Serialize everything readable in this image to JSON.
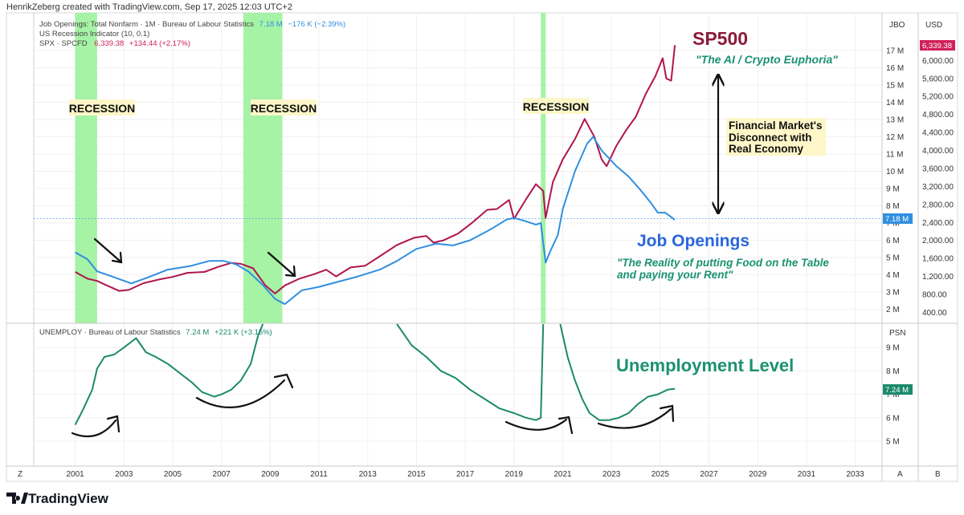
{
  "creator_line": "HenrikZeberg created with TradingView.com, Sep 17, 2025 12:03 UTC+2",
  "logo_text": "TradingView",
  "legend": {
    "jobs_label": "Job Openings: Total Nonfarm · 1M · Bureau of Labour Statistics",
    "jobs_value": "7.18 M",
    "jobs_change": "−176 K (−2.39%)",
    "recession_label": "US Recession Indicator (10, 0.1)",
    "spx_label": "SPX · SPCFD",
    "spx_value": "6,339.38",
    "spx_change": "+134.44 (+2.17%)",
    "unemploy_label": "UNEMPLOY · Bureau of Labour Statistics",
    "unemploy_value": "7.24 M",
    "unemploy_change": "+221 K (+3.15%)"
  },
  "axis_headers": {
    "jbo": "JBO",
    "usd": "USD",
    "psn": "PSN",
    "bottom_left": "Z",
    "bottom_a": "A",
    "bottom_b": "B"
  },
  "price_tags": {
    "spx": "6,339.38",
    "jobs": "7.18 M",
    "unemploy": "7.24 M"
  },
  "colors": {
    "spx": "#b0154e",
    "jobs": "#2f8fe0",
    "unemploy": "#1b8a6b",
    "recession": "#9cf29c",
    "spx_tag": "#d0215a",
    "jobs_tag": "#2f8fe0",
    "unemploy_tag": "#1b8a6b",
    "annotation_green": "#1a9270",
    "annotation_blue": "#2a66dd",
    "annotation_red": "#8b1a3b"
  },
  "annotations": {
    "recession_labels": [
      "RECESSION",
      "RECESSION",
      "RECESSION"
    ],
    "sp500_title": "SP500",
    "sp500_quote": "\"The AI / Crypto Euphoria\"",
    "disconnect": [
      "Financial Market's",
      "Disconnect with",
      "Real Economy"
    ],
    "jobs_title": "Job Openings",
    "jobs_quote": [
      "\"The Reality of putting Food on the Table",
      "and paying your Rent\""
    ],
    "unemploy_title": "Unemployment Level"
  },
  "chart_data": [
    {
      "type": "line",
      "panel": "top",
      "xlim": [
        1999.3,
        2034.1
      ],
      "x_ticks": [
        2001,
        2003,
        2005,
        2007,
        2009,
        2011,
        2013,
        2015,
        2017,
        2019,
        2021,
        2023,
        2025,
        2027,
        2029,
        2031,
        2033
      ],
      "recessions": [
        [
          2001.0,
          2001.9
        ],
        [
          2007.9,
          2009.5
        ],
        [
          2020.1,
          2020.3
        ]
      ],
      "jobs_axis": {
        "unit": "M",
        "ticks": [
          2,
          3,
          4,
          5,
          6,
          7,
          8,
          9,
          10,
          11,
          12,
          13,
          14,
          15,
          16,
          17
        ]
      },
      "usd_axis": {
        "ticks": [
          400,
          800,
          1200,
          1600,
          2000,
          2400,
          2800,
          3200,
          3600,
          4000,
          4400,
          4800,
          5200,
          5600,
          6000
        ]
      },
      "series": [
        {
          "name": "SPX · SPCFD",
          "axis": "USD",
          "x": [
            2001.0,
            2001.5,
            2001.9,
            2002.3,
            2002.8,
            2003.2,
            2003.8,
            2004.5,
            2005.0,
            2005.6,
            2006.3,
            2006.9,
            2007.4,
            2007.8,
            2008.3,
            2008.8,
            2009.2,
            2009.6,
            2010.2,
            2010.8,
            2011.3,
            2011.7,
            2012.3,
            2012.9,
            2013.5,
            2014.2,
            2014.9,
            2015.4,
            2015.7,
            2016.1,
            2016.7,
            2017.3,
            2017.9,
            2018.3,
            2018.8,
            2019.0,
            2019.5,
            2019.9,
            2020.2,
            2020.3,
            2020.6,
            2021.0,
            2021.5,
            2021.9,
            2022.3,
            2022.6,
            2022.8,
            2023.2,
            2023.6,
            2024.0,
            2024.4,
            2024.8,
            2025.1,
            2025.25,
            2025.45,
            2025.6
          ],
          "values": [
            1300,
            1150,
            1100,
            1000,
            880,
            900,
            1050,
            1140,
            1190,
            1280,
            1300,
            1420,
            1500,
            1480,
            1380,
            1000,
            820,
            1000,
            1150,
            1250,
            1350,
            1200,
            1400,
            1440,
            1650,
            1900,
            2060,
            2100,
            1950,
            2000,
            2150,
            2400,
            2680,
            2700,
            2900,
            2480,
            2920,
            3250,
            3100,
            2500,
            3300,
            3800,
            4250,
            4700,
            4300,
            3800,
            3650,
            4100,
            4450,
            4750,
            5250,
            5650,
            6050,
            5600,
            5550,
            6340
          ]
        },
        {
          "name": "Job Openings: Total Nonfarm",
          "axis": "JBO",
          "unit": "M",
          "x": [
            2001.0,
            2001.5,
            2001.9,
            2002.5,
            2003.3,
            2003.9,
            2004.8,
            2005.7,
            2006.5,
            2007.1,
            2007.6,
            2008.1,
            2008.7,
            2009.2,
            2009.6,
            2010.3,
            2011.0,
            2011.8,
            2012.6,
            2013.5,
            2014.2,
            2015.0,
            2015.8,
            2016.5,
            2017.2,
            2018.0,
            2018.7,
            2019.0,
            2019.5,
            2019.9,
            2020.1,
            2020.3,
            2020.5,
            2020.8,
            2021.0,
            2021.5,
            2022.0,
            2022.25,
            2022.6,
            2022.8,
            2023.2,
            2023.7,
            2024.2,
            2024.6,
            2024.9,
            2025.2,
            2025.4,
            2025.6
          ],
          "values": [
            5.3,
            4.9,
            4.2,
            3.9,
            3.5,
            3.8,
            4.3,
            4.5,
            4.8,
            4.8,
            4.6,
            4.2,
            3.4,
            2.6,
            2.3,
            3.1,
            3.3,
            3.6,
            3.9,
            4.3,
            4.8,
            5.5,
            5.8,
            5.7,
            6.0,
            6.6,
            7.2,
            7.3,
            7.1,
            6.9,
            7.0,
            4.7,
            5.4,
            6.3,
            7.8,
            10.0,
            11.6,
            12.0,
            11.2,
            10.9,
            10.3,
            9.7,
            8.9,
            8.2,
            7.6,
            7.6,
            7.4,
            7.18
          ]
        },
        {
          "name": "US Recession Indicator (10, 0.1)",
          "type": "shaded-band"
        }
      ]
    },
    {
      "type": "line",
      "panel": "bottom",
      "xlim": [
        1999.3,
        2034.1
      ],
      "y_axis": {
        "label": "PSN",
        "unit": "M",
        "ticks": [
          5,
          6,
          7,
          8,
          9
        ],
        "ylim": [
          4.1,
          10.0
        ]
      },
      "series": [
        {
          "name": "UNEMPLOY · Bureau of Labour Statistics",
          "unit": "M",
          "segments": [
            {
              "x": [
                2001.0,
                2001.3,
                2001.7,
                2001.9,
                2002.2,
                2002.6,
                2003.0,
                2003.5,
                2003.9,
                2004.3,
                2004.8,
                2005.3,
                2005.8,
                2006.2,
                2006.7,
                2007.0,
                2007.4,
                2007.8,
                2008.2,
                2008.5,
                2008.7
              ],
              "values": [
                5.7,
                6.3,
                7.2,
                8.1,
                8.6,
                8.7,
                9.0,
                9.4,
                8.8,
                8.6,
                8.3,
                7.9,
                7.5,
                7.1,
                6.9,
                7.0,
                7.2,
                7.6,
                8.3,
                9.5,
                10.0
              ]
            },
            {
              "x": [
                2014.2,
                2014.8,
                2015.4,
                2016.0,
                2016.6,
                2017.2,
                2017.8,
                2018.4,
                2019.0,
                2019.5,
                2019.9,
                2020.1,
                2020.2
              ],
              "values": [
                10.0,
                9.1,
                8.6,
                8.0,
                7.7,
                7.2,
                6.8,
                6.4,
                6.2,
                6.0,
                5.9,
                6.0,
                10.0
              ]
            },
            {
              "x": [
                2020.9,
                2021.2,
                2021.5,
                2021.8,
                2022.1,
                2022.5,
                2022.9,
                2023.3,
                2023.7,
                2024.1,
                2024.5,
                2024.9,
                2025.3,
                2025.6
              ],
              "values": [
                10.0,
                8.6,
                7.6,
                6.8,
                6.2,
                5.9,
                5.9,
                6.0,
                6.2,
                6.6,
                6.9,
                7.0,
                7.2,
                7.24
              ]
            }
          ]
        }
      ]
    }
  ]
}
